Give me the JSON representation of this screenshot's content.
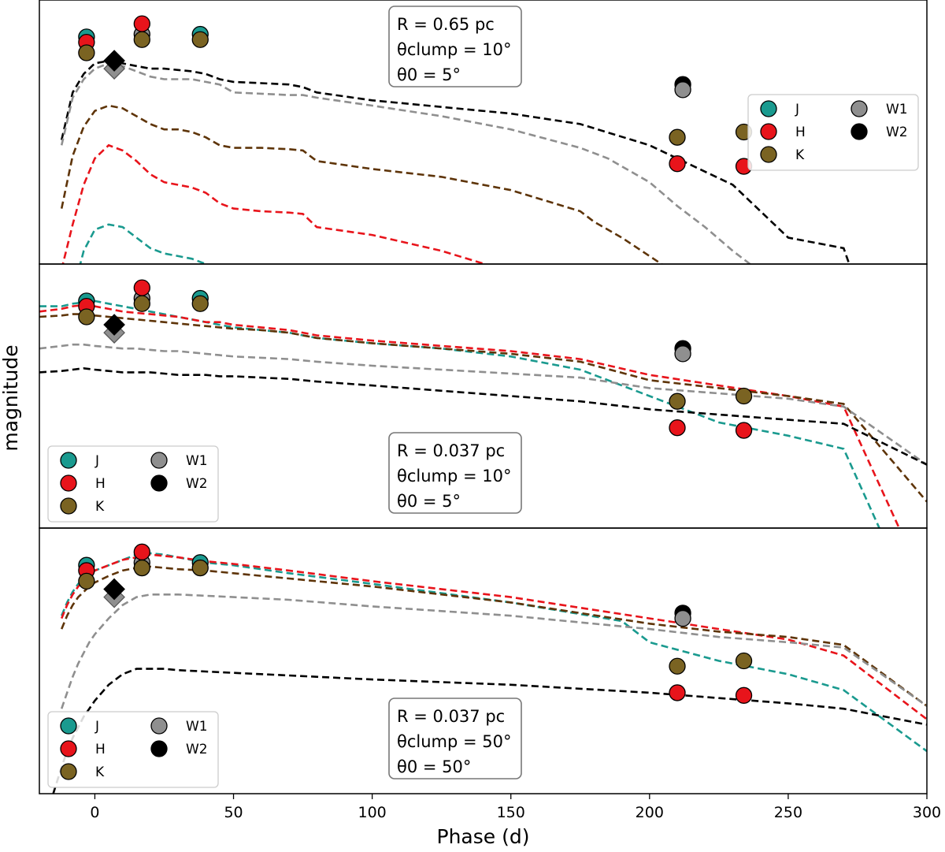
{
  "chart_data": {
    "type": "line",
    "xlabel": "Phase (d)",
    "ylabel": "magnitude",
    "xlim": [
      -20,
      300
    ],
    "xticks": [
      0,
      50,
      100,
      150,
      200,
      250,
      300
    ],
    "ylim": [
      0,
      100
    ],
    "y_inverted_magnitude": true,
    "colors": {
      "J": "#1a9a8f",
      "H": "#e8141b",
      "K": "#7a6322",
      "W1": "#8f8f8f",
      "W2": "#000000",
      "K_model": "#5e3408"
    },
    "legend_labels": [
      "J",
      "H",
      "K",
      "W1",
      "W2"
    ],
    "observations": {
      "J": {
        "x": [
          -3,
          38
        ],
        "y": [
          86,
          87
        ]
      },
      "H": {
        "x": [
          -3,
          17,
          210,
          234
        ],
        "y": [
          84,
          91,
          38,
          37
        ]
      },
      "K": {
        "x": [
          -3,
          17,
          38,
          210,
          234
        ],
        "y": [
          80,
          85,
          85,
          48,
          50
        ]
      },
      "W1": {
        "x": [
          17,
          212
        ],
        "y": [
          87,
          66
        ]
      },
      "W2": {
        "x": [
          212
        ],
        "y": [
          68
        ]
      }
    },
    "diamonds": {
      "W1": {
        "x": 7,
        "y": 74
      },
      "W2": {
        "x": 7,
        "y": 77
      }
    },
    "panels": [
      {
        "annotation": [
          "R = 0.65 pc",
          "θclump = 10°",
          "θ0 = 5°"
        ],
        "legend_position": "right-center",
        "models": [
          {
            "band": "W2",
            "x": [
              -12,
              -8,
              -4,
              0,
              5,
              10,
              15,
              20,
              25,
              30,
              35,
              40,
              45,
              50,
              60,
              70,
              75,
              80,
              100,
              150,
              175,
              200,
              210,
              220,
              230,
              250,
              260,
              270,
              272
            ],
            "y": [
              47,
              65,
              72,
              76,
              77,
              76,
              75,
              74,
              74,
              73.5,
              73,
              72,
              70,
              69,
              68.5,
              68,
              67,
              65,
              62,
              57,
              53,
              45,
              40,
              35,
              30,
              10,
              8,
              6,
              0
            ]
          },
          {
            "band": "W1",
            "x": [
              -12,
              -8,
              -4,
              0,
              5,
              10,
              15,
              20,
              25,
              30,
              35,
              40,
              45,
              50,
              60,
              70,
              75,
              80,
              100,
              125,
              150,
              175,
              185,
              200,
              210,
              220,
              230,
              240
            ],
            "y": [
              45,
              63,
              70,
              74,
              76,
              75,
              73,
              71,
              70,
              70,
              70,
              69,
              68,
              65,
              64.5,
              64,
              64,
              63,
              60,
              56,
              51,
              44,
              40,
              31,
              22,
              14,
              5,
              -3
            ]
          },
          {
            "band": "K",
            "x": [
              -12,
              -8,
              -4,
              0,
              5,
              10,
              15,
              20,
              25,
              30,
              35,
              40,
              45,
              50,
              60,
              70,
              75,
              80,
              100,
              125,
              150,
              175,
              180,
              190,
              200,
              210
            ],
            "y": [
              21,
              41,
              52,
              58,
              60,
              59,
              56,
              53,
              51,
              51,
              50,
              48,
              45,
              44,
              44,
              43.5,
              43,
              39,
              36,
              33,
              28,
              20,
              16,
              10,
              3,
              -4
            ]
          },
          {
            "band": "H",
            "x": [
              -12,
              -8,
              -4,
              0,
              5,
              10,
              15,
              20,
              25,
              30,
              35,
              40,
              45,
              50,
              60,
              70,
              75,
              80,
              100,
              125,
              150,
              165,
              175,
              185
            ],
            "y": [
              -2,
              15,
              30,
              40,
              45,
              43,
              39,
              34,
              31,
              30,
              29,
              27,
              23,
              21,
              20,
              19.5,
              19,
              14,
              11,
              5,
              -3,
              -8,
              -12,
              -16
            ]
          },
          {
            "band": "J",
            "x": [
              -12,
              -8,
              -4,
              0,
              5,
              10,
              15,
              20,
              25,
              30,
              35,
              40,
              45,
              50,
              55,
              60,
              70,
              75,
              85,
              95
            ],
            "y": [
              -30,
              -11,
              5,
              13,
              15,
              14,
              10,
              6,
              4,
              3,
              2,
              0,
              -3,
              -6,
              -5.5,
              -6,
              -8,
              -12,
              -16,
              -20
            ]
          }
        ]
      },
      {
        "annotation": [
          "R = 0.037 pc",
          "θclump = 10°",
          "θ0 = 5°"
        ],
        "legend_position": "lower-left",
        "models": [
          {
            "band": "J",
            "x": [
              -20,
              -12,
              -8,
              -4,
              0,
              5,
              10,
              15,
              20,
              25,
              30,
              35,
              40,
              45,
              50,
              60,
              70,
              75,
              80,
              100,
              125,
              150,
              175,
              200,
              225,
              250,
              270,
              285
            ],
            "y": [
              84,
              84,
              85,
              85.5,
              86,
              85,
              84,
              83,
              82,
              81,
              80,
              79,
              78,
              77,
              76,
              75,
              74,
              73,
              72,
              70,
              68,
              65,
              60,
              50,
              40,
              35,
              30,
              -5
            ]
          },
          {
            "band": "H",
            "x": [
              -20,
              -12,
              -8,
              -4,
              0,
              5,
              10,
              15,
              20,
              25,
              30,
              35,
              40,
              45,
              50,
              60,
              70,
              75,
              80,
              100,
              125,
              150,
              175,
              200,
              225,
              250,
              270,
              290
            ],
            "y": [
              82,
              83,
              84,
              84.5,
              84,
              83,
              82,
              81.5,
              81,
              80.5,
              80,
              79,
              78,
              78,
              77,
              76,
              75,
              74,
              73,
              71,
              69,
              67,
              64,
              58,
              54,
              50,
              46,
              0
            ]
          },
          {
            "band": "K",
            "x": [
              -20,
              -12,
              -8,
              -4,
              0,
              5,
              10,
              15,
              20,
              25,
              30,
              35,
              40,
              45,
              50,
              60,
              70,
              75,
              80,
              100,
              125,
              150,
              175,
              200,
              225,
              250,
              270,
              300
            ],
            "y": [
              80,
              80.5,
              81,
              81,
              80.5,
              80,
              79.5,
              79,
              78.5,
              78,
              77.5,
              77,
              76.5,
              76,
              75.5,
              75,
              74,
              73,
              72,
              70,
              68,
              66,
              63,
              56,
              53,
              50,
              47,
              10
            ]
          },
          {
            "band": "W1",
            "x": [
              -20,
              -12,
              -8,
              -4,
              0,
              5,
              10,
              15,
              20,
              25,
              30,
              35,
              40,
              45,
              50,
              60,
              70,
              75,
              80,
              100,
              125,
              150,
              175,
              200,
              225,
              250,
              270,
              300
            ],
            "y": [
              68,
              69,
              69.5,
              69.5,
              69,
              68.5,
              68,
              68,
              67.5,
              67,
              67,
              66.5,
              66,
              65.5,
              65,
              64.5,
              64,
              63.5,
              63,
              61.5,
              60,
              58.5,
              57,
              53,
              51,
              49,
              46,
              24
            ]
          },
          {
            "band": "W2",
            "x": [
              -20,
              -12,
              -8,
              -4,
              0,
              5,
              10,
              15,
              20,
              25,
              30,
              35,
              40,
              45,
              50,
              60,
              70,
              75,
              80,
              100,
              125,
              150,
              175,
              200,
              225,
              250,
              270,
              300
            ],
            "y": [
              59,
              59.5,
              60,
              60.5,
              60,
              59.5,
              59,
              59,
              59,
              58.5,
              58,
              58,
              58,
              57.5,
              57.5,
              57,
              56.5,
              56,
              55.5,
              54,
              52,
              50,
              48,
              45,
              43,
              41,
              39.5,
              24
            ]
          }
        ]
      },
      {
        "annotation": [
          "R = 0.037 pc",
          "θclump = 50°",
          "θ0 = 50°"
        ],
        "legend_position": "lower-left",
        "models": [
          {
            "band": "J",
            "x": [
              -12,
              -10,
              -8,
              -6,
              -4,
              -2,
              0,
              5,
              10,
              15,
              20,
              25,
              30,
              40,
              50,
              70,
              100,
              150,
              190,
              200,
              225,
              250,
              270,
              300
            ],
            "y": [
              67,
              72,
              76,
              79,
              81,
              83,
              84,
              86,
              88,
              90,
              90.5,
              90,
              89,
              87,
              86,
              83,
              79,
              72,
              65,
              57,
              50,
              45,
              39,
              16
            ]
          },
          {
            "band": "H",
            "x": [
              -12,
              -10,
              -8,
              -6,
              -4,
              -2,
              0,
              5,
              10,
              15,
              20,
              25,
              30,
              40,
              50,
              70,
              100,
              150,
              200,
              225,
              250,
              270,
              300
            ],
            "y": [
              66,
              71,
              75,
              78,
              80,
              82,
              84,
              86,
              88,
              89,
              90,
              89.5,
              89,
              87.5,
              86.5,
              84,
              80,
              74,
              66,
              62,
              58,
              52,
              28
            ]
          },
          {
            "band": "K",
            "x": [
              -12,
              -10,
              -8,
              -6,
              -4,
              -2,
              0,
              5,
              10,
              15,
              20,
              25,
              30,
              40,
              50,
              70,
              100,
              150,
              200,
              225,
              250,
              270,
              300
            ],
            "y": [
              62,
              67,
              71,
              74,
              76,
              78,
              79.5,
              82,
              84,
              85,
              85.5,
              85,
              84.5,
              84,
              83,
              81,
              78,
              72,
              64,
              61,
              59,
              56,
              33
            ]
          },
          {
            "band": "W1",
            "x": [
              -12,
              -10,
              -8,
              -6,
              -4,
              -2,
              0,
              5,
              10,
              15,
              20,
              25,
              30,
              40,
              50,
              70,
              100,
              150,
              200,
              225,
              250,
              270,
              300
            ],
            "y": [
              32,
              38,
              44,
              49,
              53,
              57,
              60,
              66,
              71,
              74,
              75,
              75,
              75,
              74.5,
              74,
              73,
              70.5,
              67,
              62,
              59,
              57,
              55,
              33
            ]
          },
          {
            "band": "W2",
            "x": [
              -15,
              -12,
              -10,
              -8,
              -6,
              -4,
              -2,
              0,
              5,
              10,
              15,
              20,
              25,
              30,
              40,
              50,
              70,
              100,
              150,
              200,
              225,
              250,
              270,
              300
            ],
            "y": [
              0,
              10,
              16,
              21,
              25,
              29,
              32,
              35,
              41,
              45,
              47,
              47,
              47,
              46.5,
              46,
              45.5,
              44.5,
              43,
              41,
              38,
              36,
              34,
              32,
              26
            ]
          }
        ]
      }
    ]
  }
}
